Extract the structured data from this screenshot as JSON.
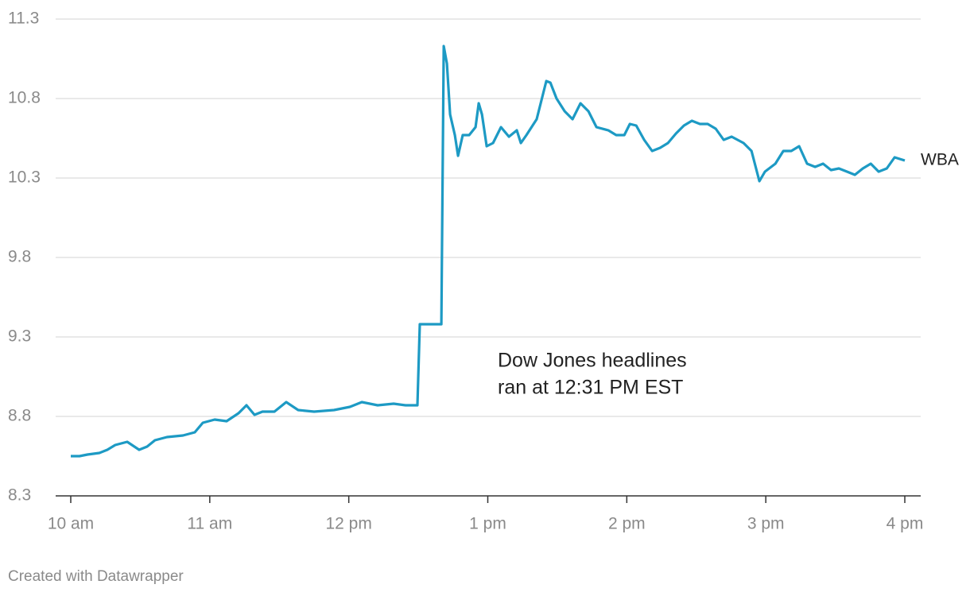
{
  "chart_data": {
    "type": "line",
    "x": [
      10.0,
      10.063,
      10.12,
      10.206,
      10.263,
      10.32,
      10.406,
      10.492,
      10.549,
      10.606,
      10.692,
      10.807,
      10.892,
      10.95,
      11.035,
      11.121,
      11.207,
      11.264,
      11.322,
      11.379,
      11.465,
      11.55,
      11.636,
      11.751,
      11.894,
      12.008,
      12.094,
      12.208,
      12.323,
      12.409,
      12.494,
      12.511,
      12.666,
      12.683,
      12.706,
      12.729,
      12.763,
      12.786,
      12.82,
      12.866,
      12.912,
      12.935,
      12.958,
      12.992,
      13.038,
      13.095,
      13.152,
      13.209,
      13.238,
      13.278,
      13.352,
      13.421,
      13.45,
      13.495,
      13.553,
      13.61,
      13.667,
      13.724,
      13.782,
      13.867,
      13.924,
      13.982,
      14.022,
      14.068,
      14.125,
      14.182,
      14.24,
      14.296,
      14.354,
      14.411,
      14.468,
      14.526,
      14.582,
      14.64,
      14.697,
      14.754,
      14.84,
      14.897,
      14.954,
      14.994,
      15.069,
      15.126,
      15.183,
      15.24,
      15.297,
      15.355,
      15.412,
      15.469,
      15.526,
      15.584,
      15.641,
      15.698,
      15.755,
      15.812,
      15.87,
      15.927,
      16.0
    ],
    "series": [
      {
        "name": "WBA",
        "color": "#1d9ac4",
        "values": [
          8.55,
          8.55,
          8.56,
          8.57,
          8.59,
          8.62,
          8.64,
          8.59,
          8.61,
          8.65,
          8.67,
          8.68,
          8.7,
          8.76,
          8.78,
          8.77,
          8.82,
          8.87,
          8.81,
          8.83,
          8.83,
          8.89,
          8.84,
          8.83,
          8.84,
          8.86,
          8.89,
          8.87,
          8.88,
          8.87,
          8.87,
          9.38,
          9.38,
          11.13,
          11.02,
          10.7,
          10.57,
          10.44,
          10.57,
          10.57,
          10.62,
          10.77,
          10.7,
          10.5,
          10.52,
          10.62,
          10.56,
          10.6,
          10.52,
          10.57,
          10.67,
          10.91,
          10.9,
          10.8,
          10.72,
          10.67,
          10.77,
          10.72,
          10.62,
          10.6,
          10.57,
          10.57,
          10.64,
          10.63,
          10.54,
          10.47,
          10.49,
          10.52,
          10.58,
          10.63,
          10.66,
          10.64,
          10.64,
          10.61,
          10.54,
          10.56,
          10.52,
          10.47,
          10.28,
          10.34,
          10.39,
          10.47,
          10.47,
          10.5,
          10.39,
          10.37,
          10.39,
          10.35,
          10.36,
          10.34,
          10.32,
          10.36,
          10.39,
          10.34,
          10.36,
          10.43,
          10.41
        ]
      }
    ],
    "xlim": [
      10,
      16
    ],
    "xticks": [
      {
        "value": 10,
        "label": "10 am"
      },
      {
        "value": 11,
        "label": "11 am"
      },
      {
        "value": 12,
        "label": "12 pm"
      },
      {
        "value": 13,
        "label": "1 pm"
      },
      {
        "value": 14,
        "label": "2 pm"
      },
      {
        "value": 15,
        "label": "3 pm"
      },
      {
        "value": 16,
        "label": "4 pm"
      }
    ],
    "ylim": [
      8.3,
      11.3
    ],
    "yticks": [
      8.3,
      8.8,
      9.3,
      9.8,
      10.3,
      10.8,
      11.3
    ],
    "grid": true,
    "annotation": [
      "Dow Jones headlines",
      "ran at 12:31 PM EST"
    ],
    "footer": "Created with Datawrapper"
  }
}
